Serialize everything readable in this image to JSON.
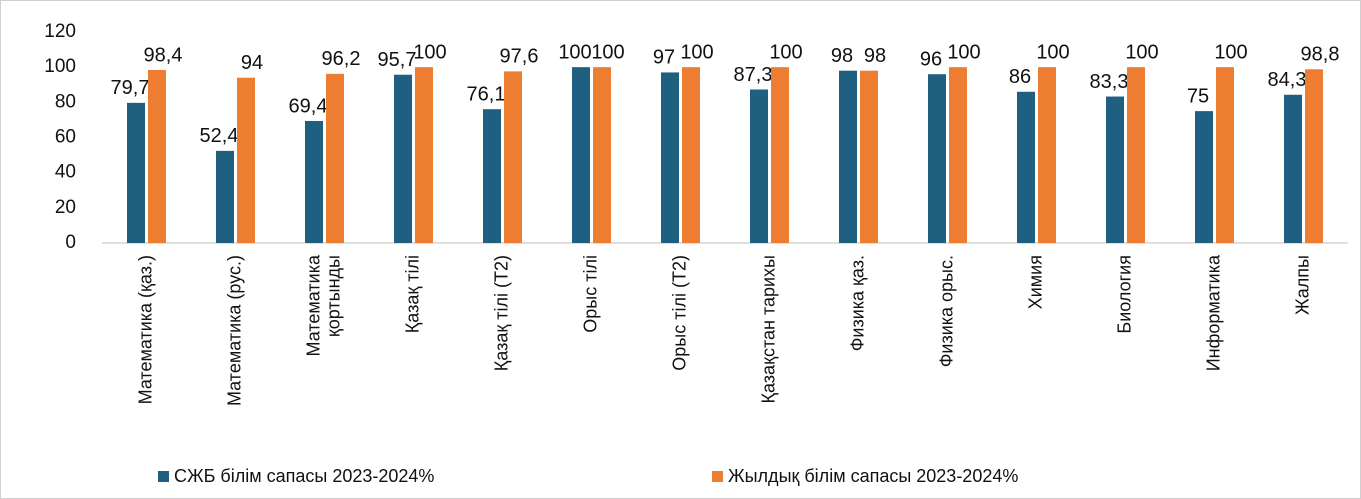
{
  "chart_data": {
    "type": "bar",
    "categories": [
      "Математика (қаз.)",
      "Математика (рус.)",
      "Математика\nқортынды",
      "Қазақ тілі",
      "Қазақ тілі (Т2)",
      "Орыс тілі",
      "Орыс тілі (Т2)",
      "Қазақстан тарихы",
      "Физика қаз.",
      "Физика орыс.",
      "Химия",
      "Биология",
      "Информатика",
      "Жалпы"
    ],
    "series": [
      {
        "name": "СЖБ білім сапасы 2023-2024%",
        "color": "#1f5f7f",
        "values": [
          79.7,
          52.4,
          69.4,
          95.7,
          76.1,
          100,
          97,
          87.3,
          98,
          96,
          86,
          83.3,
          75,
          84.3
        ],
        "value_labels": [
          "79,7",
          "52,4",
          "69,4",
          "95,7",
          "76,1",
          "100",
          "97",
          "87,3",
          "98",
          "96",
          "86",
          "83,3",
          "75",
          "84,3"
        ]
      },
      {
        "name": "Жылдық білім сапасы 2023-2024%",
        "color": "#ed7d31",
        "values": [
          98.4,
          94,
          96.2,
          100,
          97.6,
          100,
          100,
          100,
          98,
          100,
          100,
          100,
          100,
          98.8
        ],
        "value_labels": [
          "98,4",
          "94",
          "96,2",
          "100",
          "97,6",
          "100",
          "100",
          "100",
          "98",
          "100",
          "100",
          "100",
          "100",
          "98,8"
        ]
      }
    ],
    "ylim": [
      0,
      120
    ],
    "yticks": [
      0,
      20,
      40,
      60,
      80,
      100,
      120
    ],
    "grid": false,
    "legend": "bottom"
  }
}
